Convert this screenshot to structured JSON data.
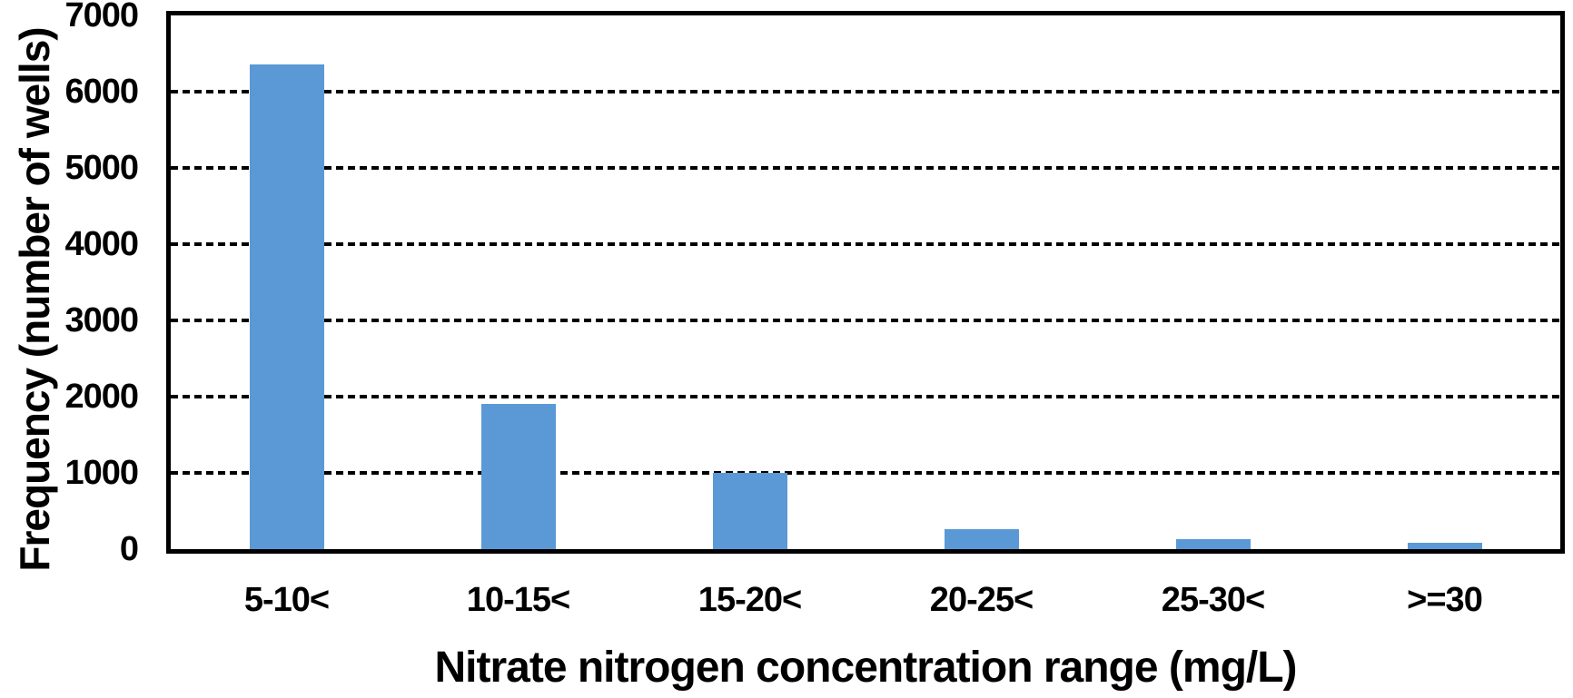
{
  "chart_data": {
    "type": "bar",
    "title": "",
    "xlabel": "Nitrate nitrogen concentration range (mg/L)",
    "ylabel": "Frequency (number of wells)",
    "categories": [
      "5-10<",
      "10-15<",
      "15-20<",
      "20-25<",
      "25-30<",
      ">=30"
    ],
    "values": [
      6360,
      1900,
      1000,
      265,
      130,
      80
    ],
    "ylim": [
      0,
      7000
    ],
    "y_ticks": [
      0,
      1000,
      2000,
      3000,
      4000,
      5000,
      6000,
      7000
    ],
    "grid": "horizontal-dashed",
    "legend": "none",
    "bar_color": "#5A99D5",
    "axis_color": "#000000",
    "background_color": "#FFFFFF"
  }
}
